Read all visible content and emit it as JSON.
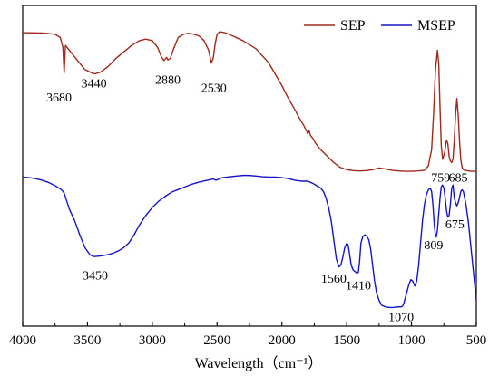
{
  "chart_data": {
    "type": "line",
    "xlabel": "Wavelength（cm⁻¹）",
    "ylabel": "",
    "xlim": [
      4000,
      500
    ],
    "x_reversed": true,
    "ylim": [
      0,
      100
    ],
    "grid": false,
    "legend_position": "top-right",
    "x_ticks": [
      4000,
      3500,
      3000,
      2500,
      2000,
      1500,
      1000,
      500
    ],
    "x_tick_labels": [
      "4000",
      "3500",
      "3000",
      "2500",
      "2000",
      "1500",
      "1000",
      "500"
    ],
    "series": [
      {
        "name": "SEP",
        "color": "#a0281c",
        "x": [
          4000,
          3850,
          3750,
          3710,
          3690,
          3680,
          3670,
          3640,
          3580,
          3520,
          3460,
          3440,
          3400,
          3340,
          3280,
          3220,
          3160,
          3100,
          3050,
          3000,
          2960,
          2930,
          2910,
          2890,
          2880,
          2860,
          2840,
          2800,
          2760,
          2720,
          2680,
          2640,
          2600,
          2565,
          2545,
          2530,
          2515,
          2500,
          2480,
          2440,
          2380,
          2300,
          2200,
          2100,
          2000,
          1950,
          1900,
          1860,
          1830,
          1800,
          1790,
          1780,
          1760,
          1740,
          1700,
          1650,
          1600,
          1550,
          1500,
          1450,
          1400,
          1350,
          1300,
          1250,
          1200,
          1150,
          1100,
          1050,
          1000,
          950,
          900,
          870,
          845,
          830,
          815,
          800,
          790,
          780,
          770,
          760,
          745,
          730,
          720,
          710,
          700,
          690,
          680,
          670,
          660,
          650,
          640,
          630,
          620,
          610,
          600,
          580,
          560,
          540,
          520,
          500
        ],
        "y": [
          91.5,
          91.4,
          91.0,
          90.0,
          87.0,
          79.0,
          87.5,
          86.0,
          83.0,
          80.0,
          78.8,
          78.7,
          79.2,
          81.0,
          83.5,
          85.5,
          87.5,
          89.0,
          89.5,
          89.0,
          87.0,
          84.0,
          82.8,
          83.8,
          83.0,
          83.5,
          86.0,
          90.0,
          91.0,
          91.3,
          91.0,
          90.5,
          89.0,
          86.0,
          82.0,
          83.5,
          88.0,
          91.0,
          91.8,
          91.5,
          90.5,
          89.0,
          86.5,
          82.0,
          75.0,
          71.0,
          67.5,
          64.5,
          62.5,
          60.0,
          61.0,
          59.5,
          58.5,
          57.0,
          55.0,
          53.0,
          51.0,
          49.5,
          48.8,
          48.5,
          48.4,
          48.5,
          48.8,
          49.3,
          49.0,
          48.6,
          48.4,
          48.3,
          48.3,
          48.4,
          48.6,
          50.0,
          55.0,
          66.0,
          80.0,
          86.0,
          82.0,
          68.0,
          56.0,
          52.0,
          54.0,
          58.0,
          57.0,
          53.0,
          51.5,
          51.0,
          52.0,
          58.0,
          66.0,
          71.0,
          66.0,
          58.0,
          52.0,
          49.5,
          48.8,
          48.5,
          48.4,
          48.3,
          48.3,
          48.3
        ]
      },
      {
        "name": "MSEP",
        "color": "#1515c8",
        "x": [
          4000,
          3950,
          3900,
          3850,
          3800,
          3750,
          3700,
          3680,
          3660,
          3640,
          3600,
          3560,
          3520,
          3480,
          3450,
          3420,
          3380,
          3340,
          3300,
          3260,
          3220,
          3180,
          3140,
          3100,
          3050,
          3000,
          2950,
          2900,
          2850,
          2800,
          2750,
          2700,
          2650,
          2600,
          2550,
          2530,
          2510,
          2490,
          2460,
          2400,
          2350,
          2300,
          2250,
          2200,
          2150,
          2100,
          2050,
          2000,
          1950,
          1900,
          1850,
          1800,
          1760,
          1720,
          1700,
          1680,
          1660,
          1640,
          1620,
          1600,
          1580,
          1560,
          1545,
          1530,
          1515,
          1500,
          1490,
          1480,
          1465,
          1450,
          1435,
          1420,
          1410,
          1400,
          1390,
          1375,
          1360,
          1345,
          1330,
          1315,
          1300,
          1285,
          1270,
          1250,
          1230,
          1200,
          1170,
          1140,
          1110,
          1080,
          1070,
          1060,
          1040,
          1020,
          1005,
          990,
          975,
          960,
          945,
          930,
          915,
          900,
          885,
          870,
          855,
          845,
          835,
          825,
          815,
          809,
          800,
          790,
          780,
          770,
          760,
          750,
          740,
          730,
          720,
          710,
          700,
          690,
          680,
          675,
          670,
          660,
          650,
          640,
          630,
          620,
          610,
          600,
          590,
          580,
          570,
          560,
          550,
          540,
          530,
          520,
          510,
          500
        ],
        "y": [
          46.5,
          46.3,
          46.0,
          45.5,
          44.8,
          43.8,
          42.5,
          41.5,
          39.0,
          36.5,
          33.0,
          28.5,
          24.5,
          22.2,
          21.7,
          21.8,
          22.0,
          22.3,
          22.8,
          23.5,
          24.5,
          26.0,
          28.5,
          31.5,
          34.5,
          37.0,
          39.0,
          40.5,
          41.8,
          42.6,
          43.4,
          44.2,
          44.8,
          45.3,
          45.7,
          45.9,
          45.5,
          45.8,
          46.3,
          46.6,
          46.8,
          47.0,
          47.0,
          46.8,
          46.6,
          46.5,
          46.5,
          46.3,
          46.0,
          45.5,
          45.2,
          45.2,
          44.5,
          43.5,
          43.0,
          42.0,
          40.0,
          37.0,
          33.0,
          27.0,
          21.0,
          18.5,
          19.0,
          21.5,
          24.5,
          25.8,
          25.5,
          23.0,
          19.0,
          17.5,
          17.0,
          16.5,
          16.8,
          20.5,
          26.0,
          28.0,
          28.5,
          28.0,
          27.0,
          24.0,
          19.0,
          14.0,
          10.5,
          8.0,
          6.5,
          6.0,
          5.8,
          5.8,
          6.0,
          6.0,
          6.2,
          7.0,
          10.0,
          13.0,
          14.5,
          14.0,
          12.5,
          14.0,
          19.0,
          26.0,
          33.0,
          38.0,
          41.0,
          42.5,
          43.0,
          42.0,
          38.0,
          32.0,
          28.0,
          27.8,
          30.0,
          35.0,
          40.0,
          43.5,
          44.0,
          43.0,
          40.0,
          36.0,
          34.0,
          34.5,
          38.0,
          43.0,
          44.0,
          42.0,
          40.0,
          38.5,
          37.5,
          38.5,
          40.0,
          42.0,
          42.5,
          42.0,
          40.0,
          38.0,
          35.0,
          32.0,
          28.0,
          24.0,
          20.0,
          16.0,
          12.0,
          8.0
        ]
      }
    ],
    "annotations": [
      {
        "text": "3680",
        "x": 3720,
        "y": 70.0
      },
      {
        "text": "3440",
        "x": 3450,
        "y": 74.5
      },
      {
        "text": "2880",
        "x": 2880,
        "y": 75.5
      },
      {
        "text": "2530",
        "x": 2525,
        "y": 73.0
      },
      {
        "text": "759",
        "x": 775,
        "y": 45.0
      },
      {
        "text": "685",
        "x": 640,
        "y": 45.0
      },
      {
        "text": "809",
        "x": 830,
        "y": 24.0
      },
      {
        "text": "675",
        "x": 665,
        "y": 30.5
      },
      {
        "text": "3450",
        "x": 3440,
        "y": 14.5
      },
      {
        "text": "1560",
        "x": 1600,
        "y": 13.5
      },
      {
        "text": "1410",
        "x": 1410,
        "y": 11.5
      },
      {
        "text": "1070",
        "x": 1080,
        "y": 1.5
      }
    ]
  }
}
